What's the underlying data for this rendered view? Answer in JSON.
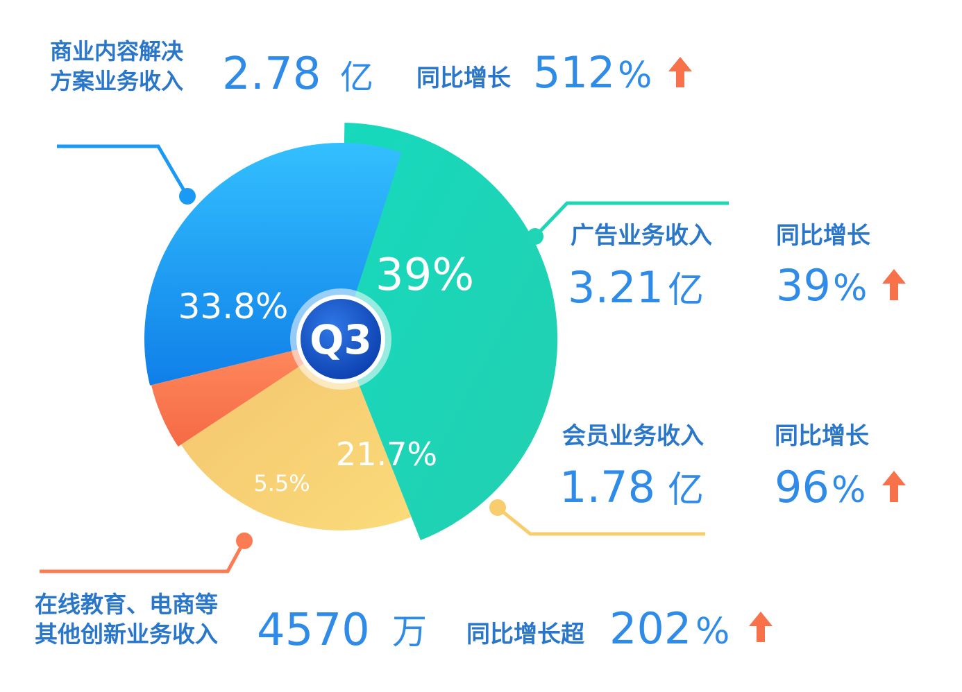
{
  "chart_data": {
    "type": "pie",
    "center_label": "Q3",
    "slices": [
      {
        "label": "39%",
        "value": 39,
        "color": "#1fd5b6"
      },
      {
        "label": "21.7%",
        "value": 21.7,
        "color": "#f7cd6e"
      },
      {
        "label": "5.5%",
        "value": 5.5,
        "color": "#fb7b52"
      },
      {
        "label": "33.8%",
        "value": 33.8,
        "color": "#1a9af5"
      }
    ]
  },
  "callouts": {
    "business": {
      "label_line1": "商业内容解决",
      "label_line2": "方案业务收入",
      "value": "2.78",
      "unit": "亿",
      "growth_label": "同比增长",
      "growth_value": "512",
      "growth_unit": "%"
    },
    "ads": {
      "label": "广告业务收入",
      "value": "3.21",
      "unit": "亿",
      "growth_label": "同比增长",
      "growth_value": "39",
      "growth_unit": "%"
    },
    "members": {
      "label": "会员业务收入",
      "value": "1.78",
      "unit": "亿",
      "growth_label": "同比增长",
      "growth_value": "96",
      "growth_unit": "%"
    },
    "other": {
      "label_line1": "在线教育、电商等",
      "label_line2": "其他创新业务收入",
      "value": "4570",
      "unit": "万",
      "growth_label": "同比增长超",
      "growth_value": "202",
      "growth_unit": "%"
    }
  },
  "colors": {
    "label": "#2a76c9",
    "value": "#2f8be8",
    "arrow": "#f7714a",
    "blue": "#1a9af5",
    "teal": "#1fd5b6",
    "yellow": "#f7cd6e",
    "orange": "#fb7b52",
    "center": "#1655c9"
  }
}
